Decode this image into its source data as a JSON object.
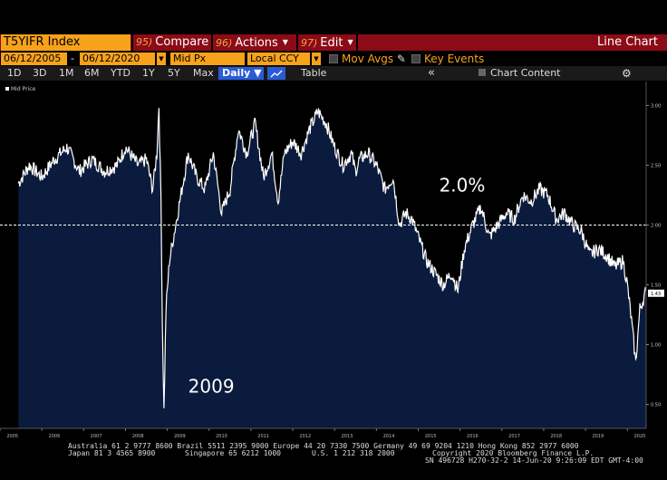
{
  "toolbar": {
    "ticker": "T5YIFR Index",
    "compare": {
      "num": "95)",
      "label": "Compare"
    },
    "actions": {
      "num": "96)",
      "label": "Actions"
    },
    "edit": {
      "num": "97)",
      "label": "Edit"
    },
    "chart_type": "Line Chart"
  },
  "params": {
    "start_date": "06/12/2005",
    "dash": "-",
    "end_date": "06/12/2020",
    "field": "Mid Px",
    "currency": "Local CCY",
    "mov_avgs": "Mov Avgs",
    "key_events": "Key Events"
  },
  "ranges": {
    "items": [
      "1D",
      "3D",
      "1M",
      "6M",
      "YTD",
      "1Y",
      "5Y",
      "Max"
    ],
    "frequency": "Daily ▼",
    "table": "Table",
    "chevron": "«",
    "chart_content": "Chart Content",
    "gear": "⚙"
  },
  "legend": "Mid Price",
  "colors": {
    "accent": "#f7a21b",
    "command_bar": "#8b0b16",
    "area_fill": "#0b1b3d",
    "line": "#ffffff",
    "selected": "#2a5bd7"
  },
  "chart_data": {
    "type": "area",
    "x": [
      2005.44,
      2005.7,
      2006.0,
      2006.3,
      2006.6,
      2006.9,
      2007.2,
      2007.5,
      2007.8,
      2008.0,
      2008.3,
      2008.5,
      2008.65,
      2008.75,
      2008.8,
      2008.85,
      2008.88,
      2008.92,
      2008.97,
      2009.05,
      2009.15,
      2009.3,
      2009.5,
      2009.7,
      2009.9,
      2010.1,
      2010.3,
      2010.5,
      2010.7,
      2010.9,
      2011.1,
      2011.3,
      2011.5,
      2011.65,
      2011.8,
      2012.0,
      2012.2,
      2012.4,
      2012.6,
      2012.8,
      2013.0,
      2013.2,
      2013.4,
      2013.5,
      2013.6,
      2013.8,
      2014.0,
      2014.2,
      2014.4,
      2014.55,
      2014.7,
      2014.85,
      2015.0,
      2015.2,
      2015.4,
      2015.6,
      2015.8,
      2015.95,
      2016.1,
      2016.3,
      2016.5,
      2016.7,
      2016.9,
      2017.1,
      2017.3,
      2017.5,
      2017.7,
      2017.9,
      2018.1,
      2018.3,
      2018.5,
      2018.7,
      2018.9,
      2019.1,
      2019.3,
      2019.5,
      2019.7,
      2019.9,
      2020.0,
      2020.1,
      2020.2,
      2020.3,
      2020.45
    ],
    "y": [
      2.35,
      2.5,
      2.4,
      2.55,
      2.65,
      2.45,
      2.55,
      2.45,
      2.5,
      2.65,
      2.5,
      2.55,
      2.3,
      2.6,
      3.0,
      2.2,
      1.2,
      0.45,
      1.3,
      1.7,
      1.9,
      2.2,
      2.6,
      2.4,
      2.3,
      2.6,
      2.1,
      2.3,
      2.8,
      2.6,
      2.85,
      2.4,
      2.6,
      2.2,
      2.6,
      2.7,
      2.6,
      2.8,
      2.95,
      2.85,
      2.65,
      2.5,
      2.6,
      2.45,
      2.55,
      2.6,
      2.5,
      2.3,
      2.4,
      2.0,
      2.1,
      2.05,
      1.9,
      1.7,
      1.6,
      1.5,
      1.6,
      1.45,
      1.8,
      2.0,
      2.15,
      1.9,
      2.0,
      2.1,
      2.05,
      2.25,
      2.2,
      2.3,
      2.25,
      2.05,
      2.1,
      2.0,
      1.95,
      1.75,
      1.8,
      1.75,
      1.65,
      1.7,
      1.5,
      1.2,
      0.85,
      1.3,
      1.45
    ],
    "last_value": 1.43,
    "ylim": [
      0.3,
      3.2
    ],
    "yticks": [
      "3.00",
      "2.50",
      "2.00",
      "1.50",
      "1.00",
      "0.50"
    ],
    "reference_line": 2.0,
    "xticks": [
      "2005",
      "2006",
      "2007",
      "2008",
      "2009",
      "2010",
      "2011",
      "2012",
      "2013",
      "2014",
      "2015",
      "2016",
      "2017",
      "2018",
      "2019",
      "2020"
    ],
    "annotations": [
      {
        "text": "2.0%",
        "x": 2015.5,
        "y": 2.28
      },
      {
        "text": "2009",
        "x": 2009.5,
        "y": 0.6
      }
    ]
  },
  "footer": {
    "line1": "Australia 61 2 9777 8600 Brazil 5511 2395 9000 Europe 44 20 7330 7500 Germany 49 69 9204 1210 Hong Kong 852 2977 6000",
    "line2a": "Japan 81 3 4565 8900",
    "line2b": "Singapore 65 6212 1000",
    "line2c": "U.S. 1 212 318 2000",
    "line2d": "Copyright 2020 Bloomberg Finance L.P.",
    "line3": "SN 496728 H270-32-2 14-Jun-20  9:26:09 EDT  GMT-4:00"
  }
}
